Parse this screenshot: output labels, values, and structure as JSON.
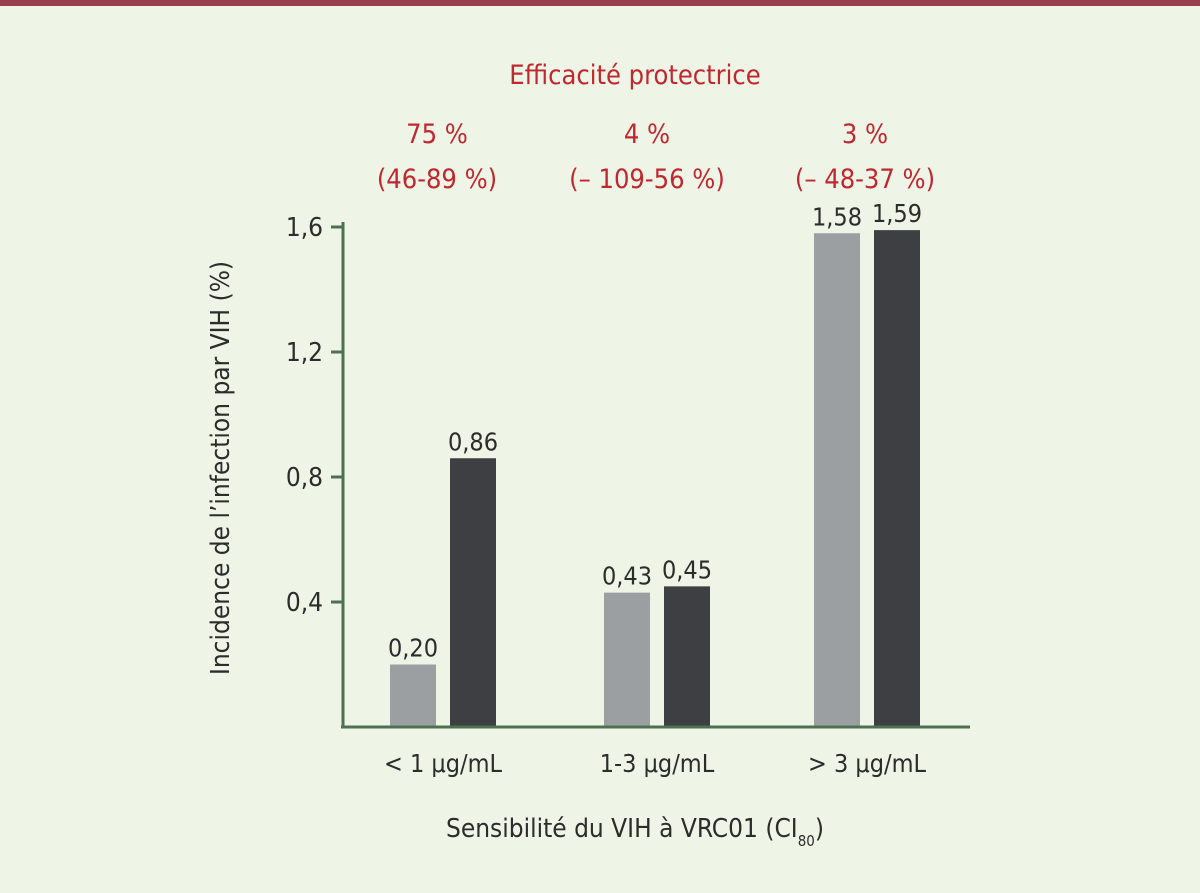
{
  "chart_data": {
    "type": "bar",
    "categories": [
      "< 1 μg/mL",
      "1-3 μg/mL",
      "> 3 μg/mL"
    ],
    "series": [
      {
        "color": "#9c9fa2",
        "values": [
          0.2,
          0.43,
          1.58
        ],
        "labels": [
          "0,20",
          "0,43",
          "1,58"
        ]
      },
      {
        "color": "#3d3f42",
        "values": [
          0.86,
          0.45,
          1.59
        ],
        "labels": [
          "0,86",
          "0,45",
          "1,59"
        ]
      }
    ],
    "ylim": [
      0,
      1.6
    ],
    "yticks": [
      {
        "value": 0.4,
        "label": "0,4"
      },
      {
        "value": 0.8,
        "label": "0,8"
      },
      {
        "value": 1.2,
        "label": "1,2"
      },
      {
        "value": 1.6,
        "label": "1,6"
      }
    ],
    "ylabel": "Incidence de l’infection par VIH (%)",
    "xlabel": "Sensibilité du VIH à VRC01 (CI",
    "xlabel_subscript": "80",
    "xlabel_suffix": ")",
    "annotation_title": "Efficacité protectrice",
    "annotations": [
      {
        "value": "75 %",
        "range": "(46-89 %)"
      },
      {
        "value": "4 %",
        "range": "(– 109-56 %)"
      },
      {
        "value": "3 %",
        "range": "(– 48-37 %)"
      }
    ],
    "colors": {
      "axis": "#4f7150",
      "annotation": "#c0282f",
      "top_rule": "#96404d",
      "background": "#eef4e6"
    }
  }
}
